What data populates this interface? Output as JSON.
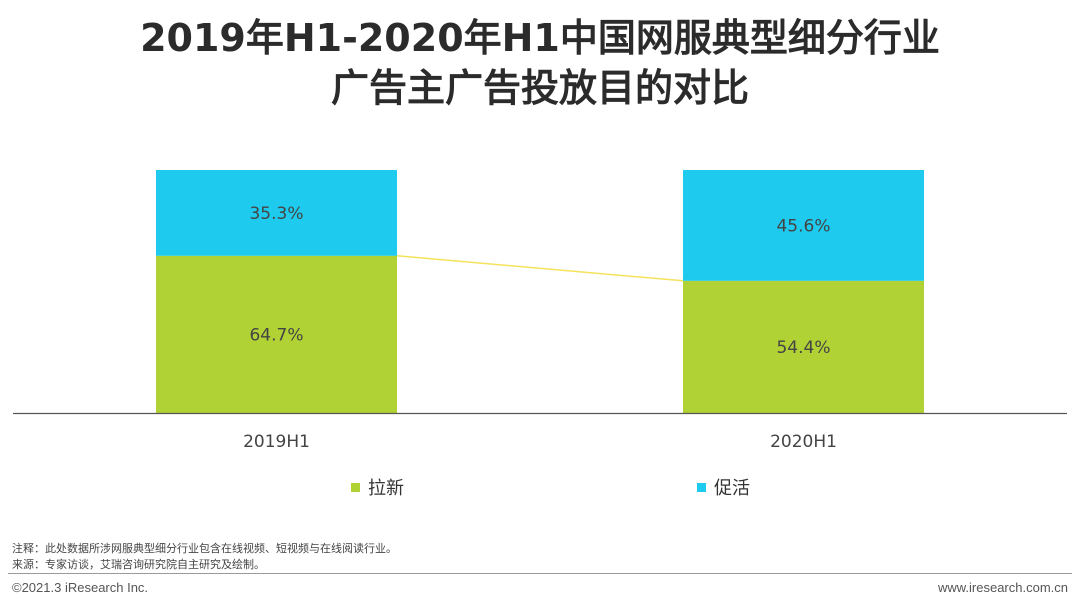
{
  "title": {
    "line1": "2019年H1-2020年H1中国网服典型细分行业",
    "line2": "广告主广告投放目的对比"
  },
  "chart_data": {
    "type": "bar",
    "stacked": true,
    "percent": true,
    "categories": [
      "2019H1",
      "2020H1"
    ],
    "series": [
      {
        "name": "拉新",
        "values": [
          64.7,
          54.4
        ],
        "labels": [
          "64.7%",
          "54.4%"
        ],
        "color": "#b1d235"
      },
      {
        "name": "促活",
        "values": [
          35.3,
          45.6
        ],
        "labels": [
          "35.3%",
          "45.6%"
        ],
        "color": "#1ecbef"
      }
    ],
    "ylim": [
      0,
      100
    ],
    "connector_color": "#f5e25b",
    "legend_position": "bottom"
  },
  "notes": {
    "note": "注释：此处数据所涉网服典型细分行业包含在线视频、短视频与在线阅读行业。",
    "source": "来源：专家访谈，艾瑞咨询研究院自主研究及绘制。"
  },
  "footer": {
    "copyright": "©2021.3 iResearch Inc.",
    "website": "www.iresearch.com.cn"
  }
}
